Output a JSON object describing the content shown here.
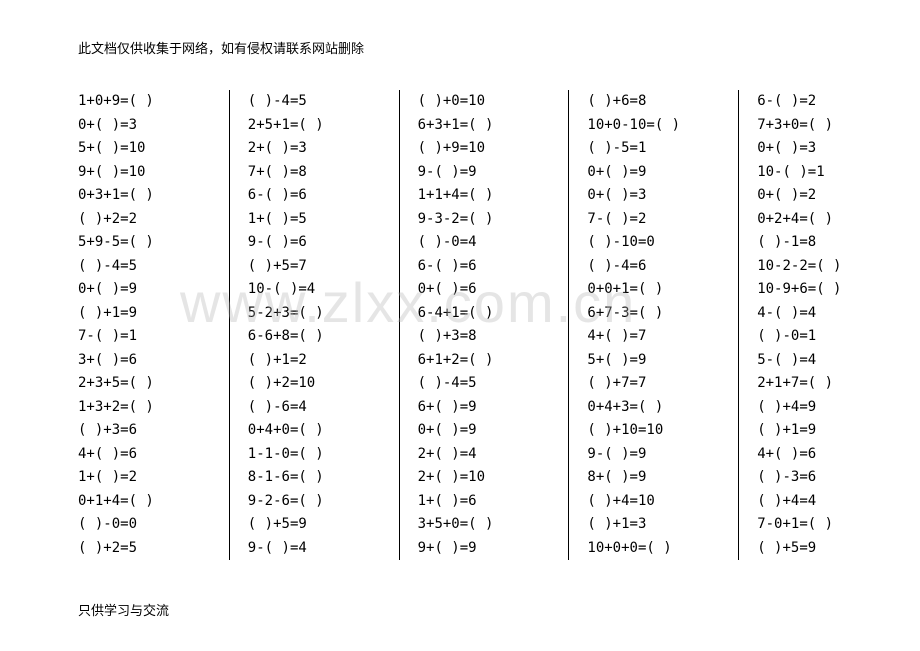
{
  "header_text": "此文档仅供收集于网络，如有侵权请联系网站删除",
  "footer_text": "只供学习与交流",
  "watermark_text": "www.zlxx.com.cn",
  "columns": [
    {
      "problems": [
        "1+0+9=(   )",
        "0+(   )=3",
        "5+(   )=10",
        "9+(   )=10",
        "0+3+1=(   )",
        "(   )+2=2",
        "5+9-5=(   )",
        "(   )-4=5",
        "0+(   )=9",
        "(   )+1=9",
        "7-(   )=1",
        "3+(   )=6",
        "2+3+5=(   )",
        "1+3+2=(   )",
        "(   )+3=6",
        "4+(   )=6",
        "1+(   )=2",
        "0+1+4=(   )",
        "(   )-0=0",
        "(   )+2=5"
      ]
    },
    {
      "problems": [
        "(   )-4=5",
        "2+5+1=(   )",
        "2+(   )=3",
        "7+(   )=8",
        "6-(   )=6",
        "1+(   )=5",
        "9-(   )=6",
        "(   )+5=7",
        "10-(   )=4",
        "5-2+3=(   )",
        "6-6+8=(   )",
        "(   )+1=2",
        "(   )+2=10",
        "(   )-6=4",
        "0+4+0=(   )",
        "1-1-0=(   )",
        "8-1-6=(   )",
        "9-2-6=(   )",
        "(   )+5=9",
        "9-(   )=4"
      ]
    },
    {
      "problems": [
        "(   )+0=10",
        "6+3+1=(   )",
        "(   )+9=10",
        "9-(   )=9",
        "1+1+4=(   )",
        "9-3-2=(   )",
        "(   )-0=4",
        "6-(   )=6",
        "0+(   )=6",
        "6-4+1=(   )",
        "(   )+3=8",
        "6+1+2=(   )",
        "(   )-4=5",
        "6+(   )=9",
        "0+(   )=9",
        "2+(   )=4",
        "2+(   )=10",
        "1+(   )=6",
        "3+5+0=(   )",
        "9+(   )=9"
      ]
    },
    {
      "problems": [
        "(   )+6=8",
        "10+0-10=(   )",
        "(   )-5=1",
        "0+(   )=9",
        "0+(   )=3",
        "7-(   )=2",
        "(   )-10=0",
        "(   )-4=6",
        "0+0+1=(   )",
        "6+7-3=(   )",
        "4+(   )=7",
        "5+(   )=9",
        "(   )+7=7",
        "0+4+3=(   )",
        "(   )+10=10",
        "9-(   )=9",
        "8+(   )=9",
        "(   )+4=10",
        "(   )+1=3",
        "10+0+0=(   )"
      ]
    },
    {
      "problems": [
        "6-(   )=2",
        "7+3+0=(   )",
        "0+(   )=3",
        "10-(   )=1",
        "0+(   )=2",
        "0+2+4=(   )",
        "(   )-1=8",
        "10-2-2=(   )",
        "10-9+6=(   )",
        "4-(   )=4",
        "(   )-0=1",
        "5-(   )=4",
        "2+1+7=(   )",
        "(   )+4=9",
        "(   )+1=9",
        "4+(   )=6",
        "(   )-3=6",
        "(   )+4=4",
        "7-0+1=(   )",
        "(   )+5=9"
      ]
    }
  ]
}
